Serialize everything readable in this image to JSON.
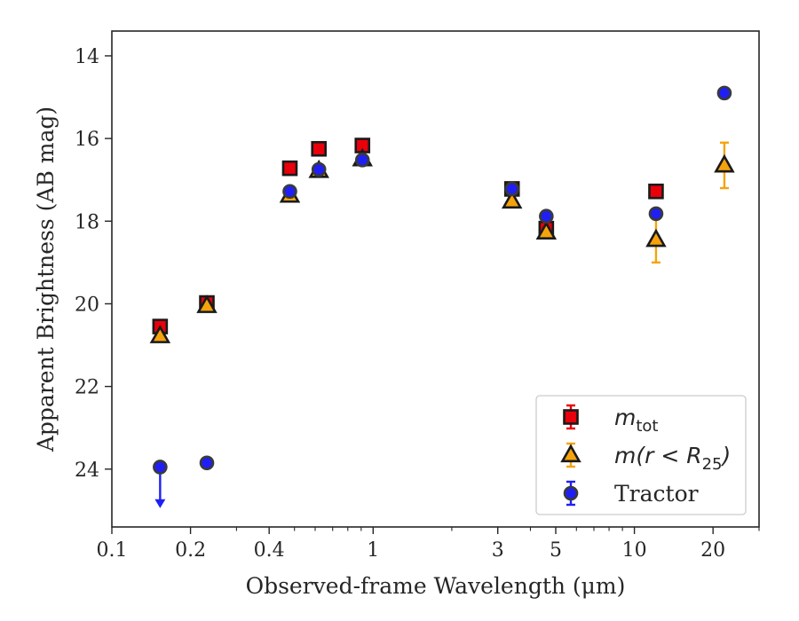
{
  "chart_data": {
    "type": "scatter",
    "title": "",
    "xlabel": "Observed-frame Wavelength (μm)",
    "ylabel": "Apparent Brightness (AB mag)",
    "xscale": "log",
    "xlim": [
      0.1,
      30
    ],
    "ylim": [
      25.4,
      13.4
    ],
    "y_inverted": true,
    "grid": false,
    "legend_position": "lower-right",
    "x_ticks": [
      {
        "value": 0.1,
        "label": "0.1"
      },
      {
        "value": 0.2,
        "label": "0.2"
      },
      {
        "value": 0.4,
        "label": "0.4"
      },
      {
        "value": 1,
        "label": "1"
      },
      {
        "value": 3,
        "label": "3"
      },
      {
        "value": 5,
        "label": "5"
      },
      {
        "value": 10,
        "label": "10"
      },
      {
        "value": 20,
        "label": "20"
      }
    ],
    "x_minor_ticks": [
      0.3,
      0.5,
      0.6,
      0.7,
      0.8,
      0.9,
      2,
      4,
      6,
      7,
      8,
      9,
      30
    ],
    "y_ticks": [
      {
        "value": 14,
        "label": "14"
      },
      {
        "value": 16,
        "label": "16"
      },
      {
        "value": 18,
        "label": "18"
      },
      {
        "value": 20,
        "label": "20"
      },
      {
        "value": 22,
        "label": "22"
      },
      {
        "value": 24,
        "label": "24"
      }
    ],
    "series": [
      {
        "name": "m_tot",
        "legend_base": "m",
        "legend_sub": "tot",
        "marker": "square",
        "color": "#e8000b",
        "edge": "#1a1a1a",
        "errcolor": "#e8000b",
        "points": [
          {
            "x": 0.153,
            "y": 20.55,
            "err": 0.05
          },
          {
            "x": 0.231,
            "y": 19.98,
            "err": 0.05
          },
          {
            "x": 0.48,
            "y": 16.72,
            "err": 0.04
          },
          {
            "x": 0.62,
            "y": 16.25,
            "err": 0.04
          },
          {
            "x": 0.91,
            "y": 16.17,
            "err": 0.04
          },
          {
            "x": 3.4,
            "y": 17.22,
            "err": 0.04
          },
          {
            "x": 4.6,
            "y": 18.18,
            "err": 0.1
          },
          {
            "x": 12.1,
            "y": 17.28,
            "err": 0.05
          }
        ]
      },
      {
        "name": "m(r<R_25)",
        "legend_base": "m(r < R",
        "legend_sub": "25",
        "legend_tail": ")",
        "marker": "triangle",
        "color": "#f5a30d",
        "edge": "#1a1a1a",
        "errcolor": "#f5a30d",
        "points": [
          {
            "x": 0.153,
            "y": 20.78,
            "err": 0.05
          },
          {
            "x": 0.231,
            "y": 20.05,
            "err": 0.05
          },
          {
            "x": 0.48,
            "y": 17.38,
            "err": 0.04
          },
          {
            "x": 0.62,
            "y": 16.78,
            "err": 0.04
          },
          {
            "x": 0.91,
            "y": 16.5,
            "err": 0.04
          },
          {
            "x": 3.4,
            "y": 17.52,
            "err": 0.04
          },
          {
            "x": 4.6,
            "y": 18.27,
            "err": 0.06
          },
          {
            "x": 12.1,
            "y": 18.45,
            "err": 0.55
          },
          {
            "x": 22.1,
            "y": 16.65,
            "err": 0.55
          }
        ]
      },
      {
        "name": "Tractor",
        "legend_base": "Tractor",
        "marker": "circle",
        "color": "#1f1ff5",
        "edge": "#3a3a3a",
        "errcolor": "#1f1ff5",
        "points": [
          {
            "x": 0.153,
            "y": 23.95,
            "err": 0.0,
            "upper_limit": true,
            "arrow_to": 24.9
          },
          {
            "x": 0.231,
            "y": 23.85,
            "err": 0.0
          },
          {
            "x": 0.48,
            "y": 17.28,
            "err": 0.04
          },
          {
            "x": 0.62,
            "y": 16.75,
            "err": 0.04
          },
          {
            "x": 0.91,
            "y": 16.52,
            "err": 0.04
          },
          {
            "x": 3.4,
            "y": 17.22,
            "err": 0.04
          },
          {
            "x": 4.6,
            "y": 17.88,
            "err": 0.04
          },
          {
            "x": 12.1,
            "y": 17.82,
            "err": 0.04
          },
          {
            "x": 22.1,
            "y": 14.9,
            "err": 0.04
          }
        ]
      }
    ]
  }
}
